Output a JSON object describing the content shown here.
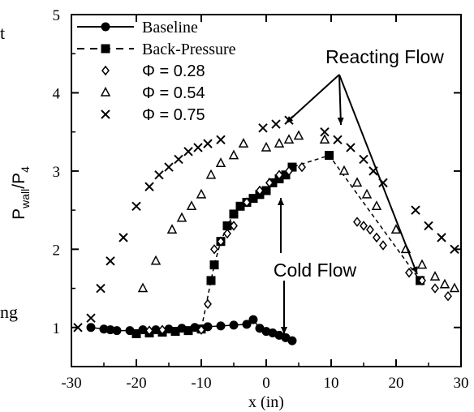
{
  "side_text": {
    "top": "t",
    "bottom": "ng"
  },
  "chart_data": {
    "type": "scatter",
    "title": "",
    "xlabel": "x (in)",
    "ylabel": "P_wall/P_4",
    "ylabel_main": "P",
    "ylabel_sub1": "wall",
    "ylabel_sep": "/P",
    "ylabel_sub2": "4",
    "xlim": [
      -30,
      30
    ],
    "ylim": [
      0.5,
      5
    ],
    "xticks": [
      -30,
      -20,
      -10,
      0,
      10,
      20,
      30
    ],
    "yticks": [
      1,
      2,
      3,
      4,
      5
    ],
    "xtick_labels": [
      "-30",
      "-20",
      "-10",
      "0",
      "10",
      "20",
      "30"
    ],
    "ytick_labels": [
      "1",
      "2",
      "3",
      "4",
      "5"
    ],
    "grid": false,
    "legend_position": "top-left",
    "series": [
      {
        "name": "Baseline",
        "marker": "filled-circle",
        "line": "solid",
        "x": [
          -27,
          -25,
          -24,
          -23,
          -21,
          -19,
          -17,
          -15,
          -13,
          -11,
          -9,
          -7,
          -5,
          -3,
          -2,
          -1,
          0,
          1,
          2,
          3,
          4
        ],
        "y": [
          1.0,
          0.98,
          0.97,
          0.96,
          0.96,
          0.97,
          0.97,
          0.98,
          0.99,
          1.0,
          1.01,
          1.02,
          1.03,
          1.04,
          1.1,
          0.99,
          0.95,
          0.93,
          0.9,
          0.87,
          0.83
        ]
      },
      {
        "name": "Back-Pressure",
        "marker": "filled-square",
        "line": "dashed",
        "x": [
          -20,
          -18,
          -16,
          -14,
          -12,
          -10,
          -8.5,
          -8,
          -7,
          -6,
          -5,
          -4,
          -3,
          -2,
          -1,
          0,
          1,
          2,
          3,
          4,
          9.7,
          23.7
        ],
        "y": [
          0.92,
          0.93,
          0.94,
          0.95,
          0.96,
          0.98,
          1.6,
          1.8,
          2.1,
          2.3,
          2.45,
          2.55,
          2.6,
          2.65,
          2.7,
          2.75,
          2.85,
          2.9,
          2.95,
          3.05,
          3.2,
          1.6
        ]
      },
      {
        "name": "Φ = 0.28",
        "marker": "open-diamond",
        "line": "none",
        "x": [
          -18,
          -16,
          -10,
          -9,
          -8,
          -7,
          -6,
          -5,
          -3,
          -1,
          0.5,
          2,
          3.5,
          5.5,
          14,
          15,
          16,
          17,
          18,
          22,
          24,
          26,
          28
        ],
        "y": [
          0.96,
          0.97,
          0.97,
          1.3,
          2.0,
          2.1,
          2.2,
          2.3,
          2.6,
          2.75,
          2.85,
          2.95,
          3.0,
          3.05,
          2.35,
          2.3,
          2.25,
          2.15,
          2.05,
          1.7,
          1.6,
          1.5,
          1.4
        ]
      },
      {
        "name": "Φ = 0.54",
        "marker": "open-triangle",
        "line": "none",
        "x": [
          -19,
          -17,
          -14.5,
          -13,
          -11.5,
          -10,
          -8.5,
          -7,
          -5,
          -3.5,
          0,
          2,
          3.5,
          5,
          9,
          12,
          14,
          15.5,
          17,
          20,
          21.5,
          24,
          26,
          27.5,
          29
        ],
        "y": [
          1.5,
          1.85,
          2.25,
          2.4,
          2.55,
          2.7,
          2.95,
          3.1,
          3.2,
          3.35,
          3.3,
          3.35,
          3.4,
          3.45,
          3.4,
          3.0,
          2.85,
          2.7,
          2.55,
          2.25,
          2.0,
          1.8,
          1.65,
          1.55,
          1.5
        ]
      },
      {
        "name": "Φ = 0.75",
        "marker": "cross",
        "line": "none",
        "x": [
          -29,
          -27,
          -25.5,
          -24,
          -22,
          -20,
          -18,
          -16.5,
          -15,
          -13.5,
          -12,
          -10.5,
          -9,
          -7,
          -0.5,
          1.5,
          3.5,
          9,
          11,
          13,
          15,
          16.5,
          18,
          23,
          25,
          27,
          29
        ],
        "y": [
          1.0,
          1.12,
          1.5,
          1.85,
          2.15,
          2.55,
          2.8,
          2.95,
          3.05,
          3.15,
          3.25,
          3.3,
          3.35,
          3.4,
          3.55,
          3.6,
          3.65,
          3.5,
          3.4,
          3.3,
          3.15,
          3.0,
          2.85,
          2.5,
          2.3,
          2.15,
          2.0
        ]
      }
    ],
    "annotations": [
      {
        "text": "Reacting Flow",
        "x": 11,
        "y": 4.4,
        "arrows_to": [
          [
            4,
            3.6
          ],
          [
            11,
            3.35
          ],
          [
            23,
            1.55
          ]
        ]
      },
      {
        "text": "Cold Flow",
        "x": 3,
        "y": 1.8,
        "arrows_to": [
          [
            3,
            3.0
          ],
          [
            3,
            0.95
          ]
        ]
      }
    ]
  }
}
